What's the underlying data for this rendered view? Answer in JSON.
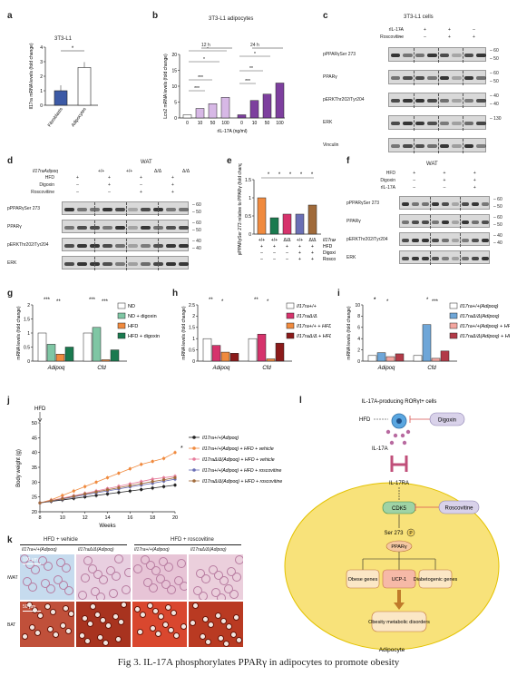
{
  "caption": "Fig 3. IL-17A phosphorylates PPARγ in adipocytes to promote obesity",
  "panels": {
    "a": {
      "letter": "a",
      "title": "3T3-L1",
      "ylabel": "Il17ra mRNA levels (fold change)",
      "sig": "*",
      "categories": [
        "Fibroblasts",
        "Adipocytes"
      ]
    },
    "b": {
      "letter": "b",
      "title": "3T3-L1 adipocytes",
      "groups": [
        "12 h",
        "24 h"
      ],
      "ylabel": "Lcn2 mRNA levels (fold change)",
      "xlabel": "rIL-17A (ng/ml)",
      "ticks": [
        "0",
        "10",
        "50",
        "100",
        "0",
        "10",
        "50",
        "100"
      ],
      "sig": [
        "***",
        "***",
        "*",
        "*",
        "***",
        "**",
        "*"
      ]
    },
    "c": {
      "letter": "c",
      "title": "3T3-L1 cells",
      "conds": [
        {
          "label": "rIL-17A",
          "vals": [
            "–",
            "+",
            "+",
            "–"
          ]
        },
        {
          "label": "Roscovitine",
          "vals": [
            "–",
            "–",
            "+",
            "+"
          ]
        }
      ],
      "rows": [
        "pPPARγSer 273",
        "PPARγ",
        "pERKThr202/Tyr204",
        "ERK",
        "Vinculin"
      ],
      "mw": [
        "60",
        "50",
        "60",
        "50",
        "40",
        "40",
        "130"
      ]
    },
    "d": {
      "letter": "d",
      "title": "WAT",
      "geno_label": "Il17raAdipoq",
      "geno_vals": [
        "+/+",
        "+/+",
        "Δ/Δ",
        "Δ/Δ"
      ],
      "conds": [
        {
          "label": "HFD",
          "vals": [
            "+",
            "+",
            "+",
            "+"
          ]
        },
        {
          "label": "Digoxin",
          "vals": [
            "–",
            "+",
            "–",
            "+"
          ]
        },
        {
          "label": "Roscovitine",
          "vals": [
            "–",
            "–",
            "+",
            "+"
          ]
        }
      ],
      "rows": [
        "pPPARγSer 273",
        "PPARγ",
        "pERKThr202/Tyr204",
        "ERK"
      ],
      "mw": [
        "60",
        "50",
        "60",
        "50",
        "40",
        "40"
      ]
    },
    "e": {
      "letter": "e",
      "ylabel": "pPPARγSer 273 relative to PPARγ (fold change)",
      "sig": [
        "*",
        "*",
        "*",
        "*",
        "*"
      ],
      "xrows": [
        {
          "label": "Il17raAdipoq",
          "vals": [
            "+/+",
            "+/+",
            "Δ/Δ",
            "+/+",
            "Δ/Δ"
          ]
        },
        {
          "label": "HFD",
          "vals": [
            "+",
            "+",
            "+",
            "+",
            "+"
          ]
        },
        {
          "label": "Digoxin",
          "vals": [
            "–",
            "–",
            "–",
            "+",
            "+"
          ]
        },
        {
          "label": "Roscovitine",
          "vals": [
            "–",
            "–",
            "–",
            "+",
            "+"
          ]
        }
      ]
    },
    "f": {
      "letter": "f",
      "title": "WAT",
      "conds": [
        {
          "label": "HFD",
          "vals": [
            "+",
            "+",
            "+"
          ]
        },
        {
          "label": "Digoxin",
          "vals": [
            "–",
            "+",
            "+"
          ]
        },
        {
          "label": "rIL-17A",
          "vals": [
            "–",
            "–",
            "+"
          ]
        }
      ],
      "rows": [
        "pPPARγSer 273",
        "PPARγ",
        "pERKThr202/Tyr204",
        "ERK"
      ],
      "mw": [
        "60",
        "50",
        "60",
        "50",
        "40",
        "40"
      ]
    },
    "g": {
      "letter": "g",
      "ylabel": "mRNA levels (fold change)",
      "genes": [
        "Adipoq",
        "Cfd"
      ],
      "legend": [
        "ND",
        "ND + digoxin",
        "HFD",
        "HFD + digoxin"
      ],
      "colors": [
        "#ffffff",
        "#7fc6a4",
        "#f08a3e",
        "#1a7a4f"
      ],
      "sig": [
        "***",
        "**",
        "***",
        "***"
      ]
    },
    "h": {
      "letter": "h",
      "ylabel": "mRNA levels (fold change)",
      "genes": [
        "Adipoq",
        "Cfd"
      ],
      "legend": [
        "Il17ra+/+",
        "Il17raΔ/Δ",
        "Il17ra+/+ + HFD",
        "Il17raΔ/Δ + HFD"
      ],
      "colors": [
        "#ffffff",
        "#d6336c",
        "#f08a3e",
        "#8b1a1a"
      ],
      "sig": [
        "**",
        "*",
        "**",
        "*"
      ]
    },
    "i": {
      "letter": "i",
      "ylabel": "mRNA levels (fold change)",
      "genes": [
        "Adipoq",
        "Cfd"
      ],
      "legend": [
        "Il17ra+/+(Adipoq)",
        "Il17raΔ/Δ(Adipoq)",
        "Il17ra+/+(Adipoq) + HFD",
        "Il17raΔ/Δ(Adipoq) + HFD"
      ],
      "colors": [
        "#ffffff",
        "#6ea6d8",
        "#f4a6a0",
        "#b23a48"
      ],
      "sig": [
        "*",
        "*",
        "*",
        "***",
        "*"
      ]
    },
    "j": {
      "letter": "j",
      "ylabel": "Body weight (g)",
      "xlabel": "Weeks",
      "hfd": "HFD",
      "sig": "*",
      "xticks": [
        "8",
        "10",
        "12",
        "14",
        "16",
        "18",
        "20"
      ],
      "yticks": [
        "20",
        "25",
        "30",
        "35",
        "40",
        "45",
        "50"
      ],
      "legend": [
        "Il17ra+/+(Adipoq)",
        "Il17ra+/+(Adipoq) + HFD + vehicle",
        "Il17raΔ/Δ(Adipoq) + HFD + vehicle",
        "Il17ra+/+(Adipoq) + HFD + roscovitine",
        "Il17raΔ/Δ(Adipoq) + HFD + roscovitine"
      ]
    },
    "k": {
      "letter": "k",
      "groups": [
        "HFD + vehicle",
        "HFD + roscovitine"
      ],
      "cols": [
        "Il17ra+/+(Adipoq)",
        "Il17raΔ/Δ(Adipoq)",
        "Il17ra+/+(Adipoq)",
        "Il17raΔ/Δ(Adipoq)"
      ],
      "rows": [
        "iWAT",
        "BAT"
      ],
      "scale1": "100 μm",
      "scale2": "50 μm"
    },
    "l": {
      "letter": "l",
      "cell_label": "IL-17A-producing RORγt+ cells",
      "hfd": "HFD",
      "il17a": "IL-17A",
      "receptor": "IL-17RA",
      "digoxin": "Digoxin",
      "roscovitine": "Roscovitine",
      "cdk5": "CDK5",
      "ser": "Ser 273",
      "p": "P",
      "ppar": "PPARγ",
      "obese": "Obese genes",
      "ucp1": "UCP-1",
      "diab": "Diabetogenic genes",
      "outcome": "Obesity metabolic disorders",
      "adipocyte": "Adipocyte"
    }
  },
  "chart_data": [
    {
      "panel": "a",
      "type": "bar",
      "categories": [
        "Fibroblasts",
        "Adipocytes"
      ],
      "values": [
        1.0,
        2.6
      ],
      "ylabel": "Il17ra mRNA levels (fold change)",
      "ylim": [
        0,
        4
      ],
      "yticks": [
        0,
        1,
        2,
        3,
        4
      ]
    },
    {
      "panel": "b",
      "type": "bar",
      "categories": [
        "0",
        "10",
        "50",
        "100",
        "0",
        "10",
        "50",
        "100"
      ],
      "values": [
        1.0,
        3.0,
        4.5,
        6.5,
        1.0,
        5.5,
        7.5,
        11.0
      ],
      "ylim": [
        0,
        20
      ],
      "yticks": [
        0,
        5,
        10,
        15,
        20
      ]
    },
    {
      "panel": "e",
      "type": "bar",
      "categories": [
        "1",
        "2",
        "3",
        "4",
        "5"
      ],
      "values": [
        1.0,
        0.45,
        0.55,
        0.55,
        0.8
      ],
      "ylim": [
        0,
        1.5
      ],
      "yticks": [
        0,
        0.5,
        1.0,
        1.5
      ]
    },
    {
      "panel": "g",
      "type": "bar",
      "categories": [
        "Adipoq",
        "Cfd"
      ],
      "series": [
        {
          "name": "ND",
          "values": [
            1.0,
            1.0
          ]
        },
        {
          "name": "ND + digoxin",
          "values": [
            0.6,
            1.2
          ]
        },
        {
          "name": "HFD",
          "values": [
            0.25,
            0.05
          ]
        },
        {
          "name": "HFD + digoxin",
          "values": [
            0.5,
            0.4
          ]
        }
      ],
      "ylim": [
        0,
        2.0
      ],
      "yticks": [
        0,
        0.5,
        1.0,
        1.5,
        2.0
      ]
    },
    {
      "panel": "h",
      "type": "bar",
      "categories": [
        "Adipoq",
        "Cfd"
      ],
      "series": [
        {
          "name": "Il17ra+/+",
          "values": [
            1.0,
            1.0
          ]
        },
        {
          "name": "Il17raΔ/Δ",
          "values": [
            0.7,
            1.2
          ]
        },
        {
          "name": "Il17ra+/+ + HFD",
          "values": [
            0.4,
            0.1
          ]
        },
        {
          "name": "Il17raΔ/Δ + HFD",
          "values": [
            0.35,
            0.8
          ]
        }
      ],
      "ylim": [
        0,
        2.5
      ],
      "yticks": [
        0,
        0.5,
        1.0,
        1.5,
        2.0,
        2.5
      ]
    },
    {
      "panel": "i",
      "type": "bar",
      "categories": [
        "Adipoq",
        "Cfd"
      ],
      "series": [
        {
          "name": "Il17ra+/+(Adipoq)",
          "values": [
            1.0,
            1.0
          ]
        },
        {
          "name": "Il17raΔ/Δ(Adipoq)",
          "values": [
            1.5,
            6.5
          ]
        },
        {
          "name": "Il17ra+/+(Adipoq) + HFD",
          "values": [
            0.8,
            0.5
          ]
        },
        {
          "name": "Il17raΔ/Δ(Adipoq) + HFD",
          "values": [
            1.3,
            1.8
          ]
        }
      ],
      "ylim": [
        0,
        10
      ],
      "yticks": [
        0,
        2,
        4,
        6,
        8,
        10
      ]
    },
    {
      "panel": "j",
      "type": "line",
      "x": [
        8,
        9,
        10,
        11,
        12,
        13,
        14,
        15,
        16,
        17,
        18,
        19,
        20
      ],
      "series": [
        {
          "name": "Il17ra+/+(Adipoq)",
          "color": "#222222",
          "values": [
            23,
            23.5,
            24,
            24.5,
            25,
            25.5,
            26,
            26.5,
            27,
            27.5,
            28,
            28.5,
            29
          ]
        },
        {
          "name": "Il17ra+/+(Adipoq) + HFD + vehicle",
          "color": "#f08a3e",
          "values": [
            23,
            24,
            25.5,
            27,
            28.5,
            30,
            31.5,
            33,
            34.5,
            36,
            37,
            38,
            40
          ]
        },
        {
          "name": "Il17raΔ/Δ(Adipoq) + HFD + vehicle",
          "color": "#e77b9b",
          "values": [
            23,
            23.8,
            24.6,
            25.4,
            26.2,
            27,
            27.8,
            28.6,
            29.4,
            30.2,
            31,
            31.5,
            32
          ]
        },
        {
          "name": "Il17ra+/+(Adipoq) + HFD + roscovitine",
          "color": "#6a6fb5",
          "values": [
            23,
            23.6,
            24.3,
            25,
            25.7,
            26.4,
            27,
            27.7,
            28.4,
            29,
            29.6,
            30.3,
            31
          ]
        },
        {
          "name": "Il17raΔ/Δ(Adipoq) + HFD + roscovitine",
          "color": "#a06a3a",
          "values": [
            23,
            23.7,
            24.4,
            25.2,
            26,
            26.7,
            27.4,
            28.1,
            28.8,
            29.5,
            30.2,
            30.8,
            31.5
          ]
        }
      ],
      "xlabel": "Weeks",
      "ylabel": "Body weight (g)",
      "ylim": [
        20,
        50
      ],
      "xlim": [
        8,
        20
      ]
    }
  ]
}
